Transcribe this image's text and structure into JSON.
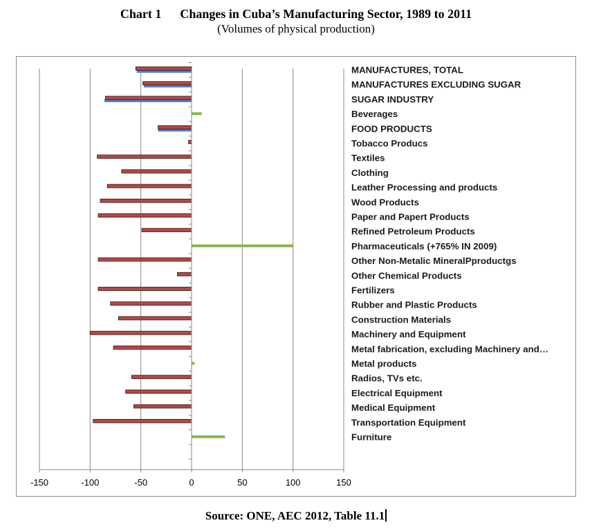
{
  "title": "Chart 1      Changes in Cuba’s Manufacturing Sector, 1989 to 2011",
  "subtitle": "(Volumes of physical production)",
  "source": "Source: ONE, AEC 2012, Table 11.1",
  "chart_data": {
    "type": "bar",
    "orientation": "horizontal",
    "grid": true,
    "legend": "none",
    "xlim": [
      -150,
      150
    ],
    "xticks": [
      "-150",
      "-100",
      "-50",
      "0",
      "50",
      "100",
      "150"
    ],
    "categories": [
      "MANUFACTURES, TOTAL",
      "MANUFACTURES EXCLUDING SUGAR",
      "SUGAR INDUSTRY",
      "Beverages",
      "FOOD PRODUCTS",
      "Tobacco Producs",
      "Textiles",
      "Clothing",
      "Leather Processing and products",
      "Wood Products",
      "Paper and Papert Products",
      "Refined Petroleum Products",
      "Pharmaceuticals  (+765% IN 2009)",
      "Other Non-Metalic MineralPproductgs",
      "Other Chemical Products",
      "Fertilizers",
      "Rubber and Plastic Products",
      "Construction Materials",
      "Machinery and Equipment",
      "Metal fabrication, excluding Machinery and…",
      "Metal products",
      "Radios, TVs etc.",
      "Electrical Equipment",
      "Medical Equipment",
      "Transportation Equipment",
      "Furniture"
    ],
    "bold_categories": [
      0,
      1,
      2,
      4
    ],
    "values": [
      -55,
      -48,
      -85,
      10,
      -33,
      -3,
      -93,
      -69,
      -83,
      -90,
      -92,
      -49,
      100,
      -92,
      -14,
      -92,
      -80,
      -72,
      -100,
      -77,
      3,
      -59,
      -65,
      -57,
      -97,
      33
    ],
    "secondary_values": [
      -54,
      -47,
      -86,
      null,
      -33,
      null,
      null,
      null,
      null,
      null,
      null,
      null,
      null,
      null,
      null,
      null,
      null,
      null,
      null,
      null,
      null,
      null,
      null,
      null,
      null,
      null
    ],
    "colors": {
      "negative": "#b04a4a",
      "negative_edge": "#3a1010",
      "positive": "#8ab64c",
      "secondary": "#4a7cc8",
      "grid": "#888888",
      "axis": "#888888"
    }
  }
}
